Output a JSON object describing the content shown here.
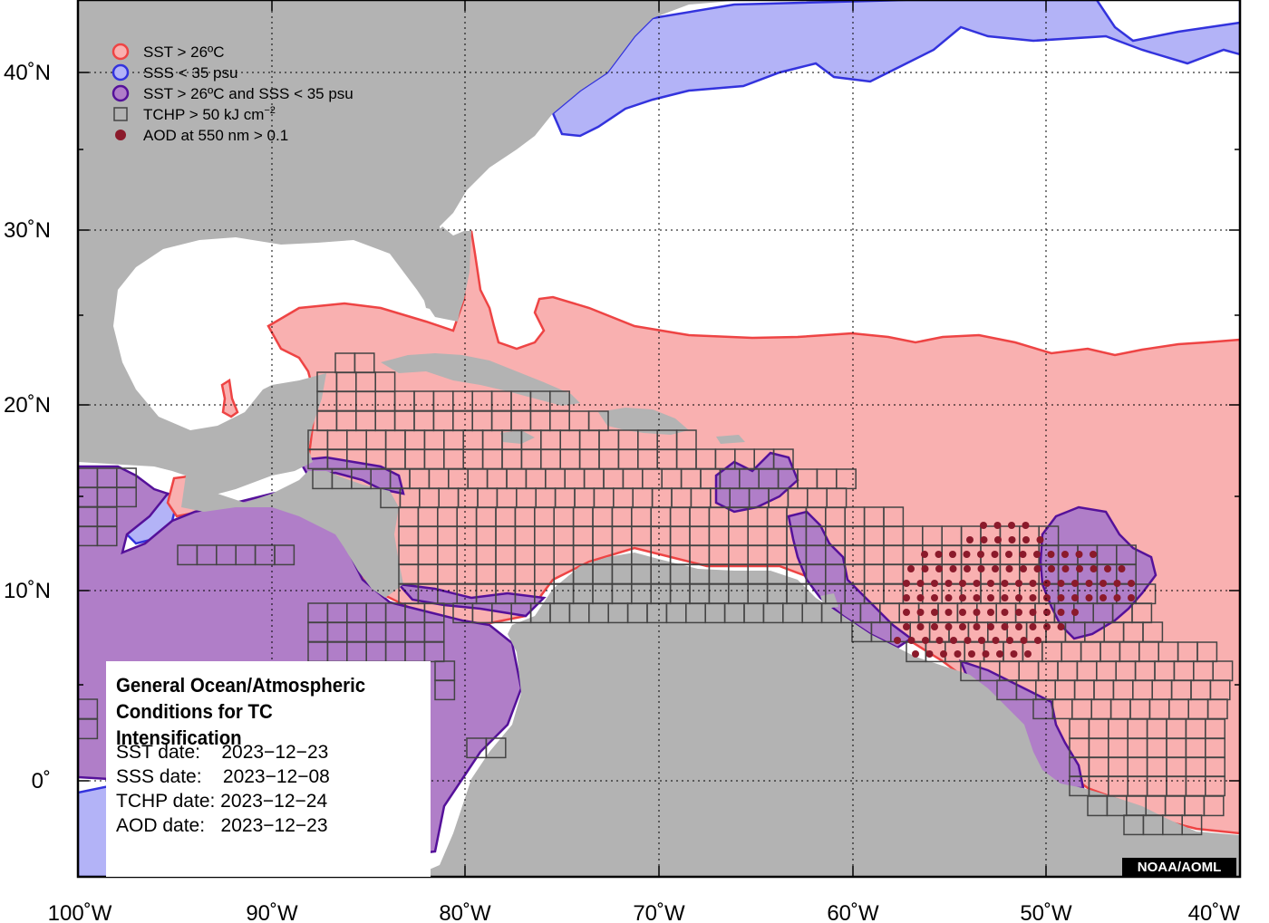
{
  "map": {
    "lon_ticks": [
      "100˚W",
      "90˚W",
      "80˚W",
      "70˚W",
      "60˚W",
      "50˚W",
      "40˚W"
    ],
    "lat_ticks": [
      "40˚N",
      "30˚N",
      "20˚N",
      "10˚N",
      "0˚"
    ],
    "extent": {
      "lon": [
        -100,
        -40
      ],
      "lat": [
        -5.5,
        44.5
      ]
    },
    "colors": {
      "land": "#b3b3b3",
      "ocean": "#ffffff",
      "sst": "#f9b0b0",
      "sst_edge": "#ee4444",
      "sss": "#b3b3f7",
      "sss_edge": "#3333dd",
      "both": "#b07ec8",
      "both_edge": "#55119a",
      "aod_dot": "#8b1a2b",
      "tchp_grid": "#444444"
    }
  },
  "legend": {
    "items": [
      {
        "label": "SST > 26ºC",
        "icon": "sst-circle-icon"
      },
      {
        "label": "SSS < 35 psu",
        "icon": "sss-circle-icon"
      },
      {
        "label": "SST > 26ºC and SSS < 35 psu",
        "icon": "sst-sss-circle-icon"
      },
      {
        "label": "TCHP > 50 kJ cm",
        "sup": "−2",
        "icon": "tchp-square-icon"
      },
      {
        "label": "AOD at 550 nm > 0.1",
        "icon": "aod-dot-icon"
      }
    ]
  },
  "info": {
    "title_line1": "General Ocean/Atmospheric",
    "title_line2": "Conditions for TC Intensification",
    "sst_date": "SST date:    2023−12−23",
    "sss_date": "SSS date:    2023−12−08",
    "tchp_date": "TCHP date: 2023−12−24",
    "aod_date": "AOD date:   2023−12−23"
  },
  "credit": "NOAA/AOML"
}
